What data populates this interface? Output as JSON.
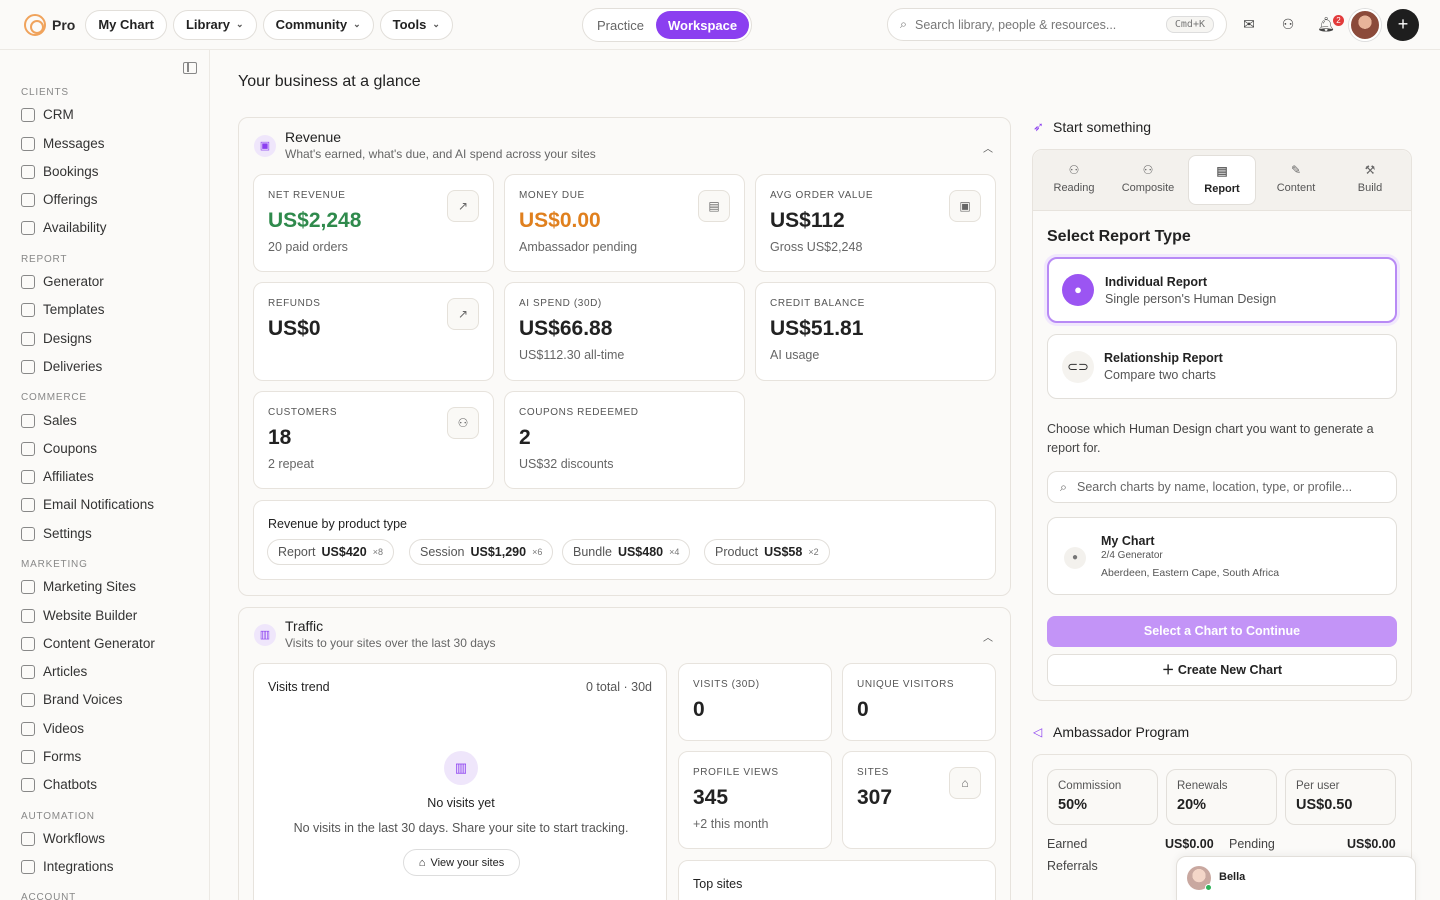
{
  "topbar": {
    "brand": "Pro",
    "nav": [
      "My Chart",
      "Library",
      "Community",
      "Tools"
    ],
    "modes": [
      "Practice",
      "Workspace"
    ],
    "search_placeholder": "Search library, people & resources...",
    "search_shortcut": "Cmd+K",
    "notification_count": "2"
  },
  "sidebar": {
    "sections": [
      {
        "title": "CLIENTS",
        "items": [
          "CRM",
          "Messages",
          "Bookings",
          "Offerings",
          "Availability"
        ]
      },
      {
        "title": "REPORT",
        "items": [
          "Generator",
          "Templates",
          "Designs",
          "Deliveries"
        ]
      },
      {
        "title": "COMMERCE",
        "items": [
          "Sales",
          "Coupons",
          "Affiliates",
          "Email Notifications",
          "Settings"
        ]
      },
      {
        "title": "MARKETING",
        "items": [
          "Marketing Sites",
          "Website Builder",
          "Content Generator",
          "Articles",
          "Brand Voices",
          "Videos",
          "Forms",
          "Chatbots"
        ]
      },
      {
        "title": "AUTOMATION",
        "items": [
          "Workflows",
          "Integrations"
        ]
      },
      {
        "title": "ACCOUNT",
        "items": []
      }
    ]
  },
  "main": {
    "title": "Your business at a glance",
    "revenue": {
      "title": "Revenue",
      "subtitle": "What's earned, what's due, and AI spend across your sites",
      "cards": [
        {
          "label": "NET REVENUE",
          "value": "US$2,248",
          "sub": "20 paid orders"
        },
        {
          "label": "MONEY DUE",
          "value": "US$0.00",
          "sub": "Ambassador pending"
        },
        {
          "label": "AVG ORDER VALUE",
          "value": "US$112",
          "sub": "Gross US$2,248"
        },
        {
          "label": "REFUNDS",
          "value": "US$0",
          "sub": ""
        },
        {
          "label": "AI SPEND (30D)",
          "value": "US$66.88",
          "sub": "US$112.30 all-time"
        },
        {
          "label": "CREDIT BALANCE",
          "value": "US$51.81",
          "sub": "AI usage"
        },
        {
          "label": "CUSTOMERS",
          "value": "18",
          "sub": "2 repeat"
        },
        {
          "label": "COUPONS REDEEMED",
          "value": "2",
          "sub": "US$32 discounts"
        }
      ],
      "by_type_title": "Revenue by product type",
      "by_type": [
        {
          "name": "Report",
          "amount": "US$420",
          "count": "×8"
        },
        {
          "name": "Session",
          "amount": "US$1,290",
          "count": "×6"
        },
        {
          "name": "Bundle",
          "amount": "US$480",
          "count": "×4"
        },
        {
          "name": "Product",
          "amount": "US$58",
          "count": "×2"
        }
      ]
    },
    "traffic": {
      "title": "Traffic",
      "subtitle": "Visits to your sites over the last 30 days",
      "trend_title": "Visits trend",
      "trend_meta": "0 total · 30d",
      "empty_title": "No visits yet",
      "empty_sub": "No visits in the last 30 days. Share your site to start tracking.",
      "empty_button": "View your sites",
      "cards": [
        {
          "label": "VISITS (30D)",
          "value": "0",
          "sub": ""
        },
        {
          "label": "UNIQUE VISITORS",
          "value": "0",
          "sub": ""
        },
        {
          "label": "PROFILE VIEWS",
          "value": "345",
          "sub": "+2 this month"
        },
        {
          "label": "SITES",
          "value": "307",
          "sub": ""
        }
      ],
      "top_sites_title": "Top sites"
    }
  },
  "right": {
    "start_title": "Start something",
    "tabs": [
      "Reading",
      "Composite",
      "Report",
      "Content",
      "Build"
    ],
    "select_title": "Select Report Type",
    "options": [
      {
        "title": "Individual Report",
        "sub": "Single person's Human Design"
      },
      {
        "title": "Relationship Report",
        "sub": "Compare two charts"
      }
    ],
    "help": "Choose which Human Design chart you want to generate a report for.",
    "chart_search_placeholder": "Search charts by name, location, type, or profile...",
    "chart": {
      "name": "My Chart",
      "type": "2/4 Generator",
      "location": "Aberdeen, Eastern Cape, South Africa"
    },
    "continue_label": "Select a Chart to Continue",
    "create_label": "Create New Chart",
    "ambassador_title": "Ambassador Program",
    "stats": [
      {
        "label": "Commission",
        "value": "50%"
      },
      {
        "label": "Renewals",
        "value": "20%"
      },
      {
        "label": "Per user",
        "value": "US$0.50"
      }
    ],
    "earned_label": "Earned",
    "earned_value": "US$0.00",
    "pending_label": "Pending",
    "pending_value": "US$0.00",
    "referrals_label": "Referrals",
    "chat_name": "Bella"
  }
}
